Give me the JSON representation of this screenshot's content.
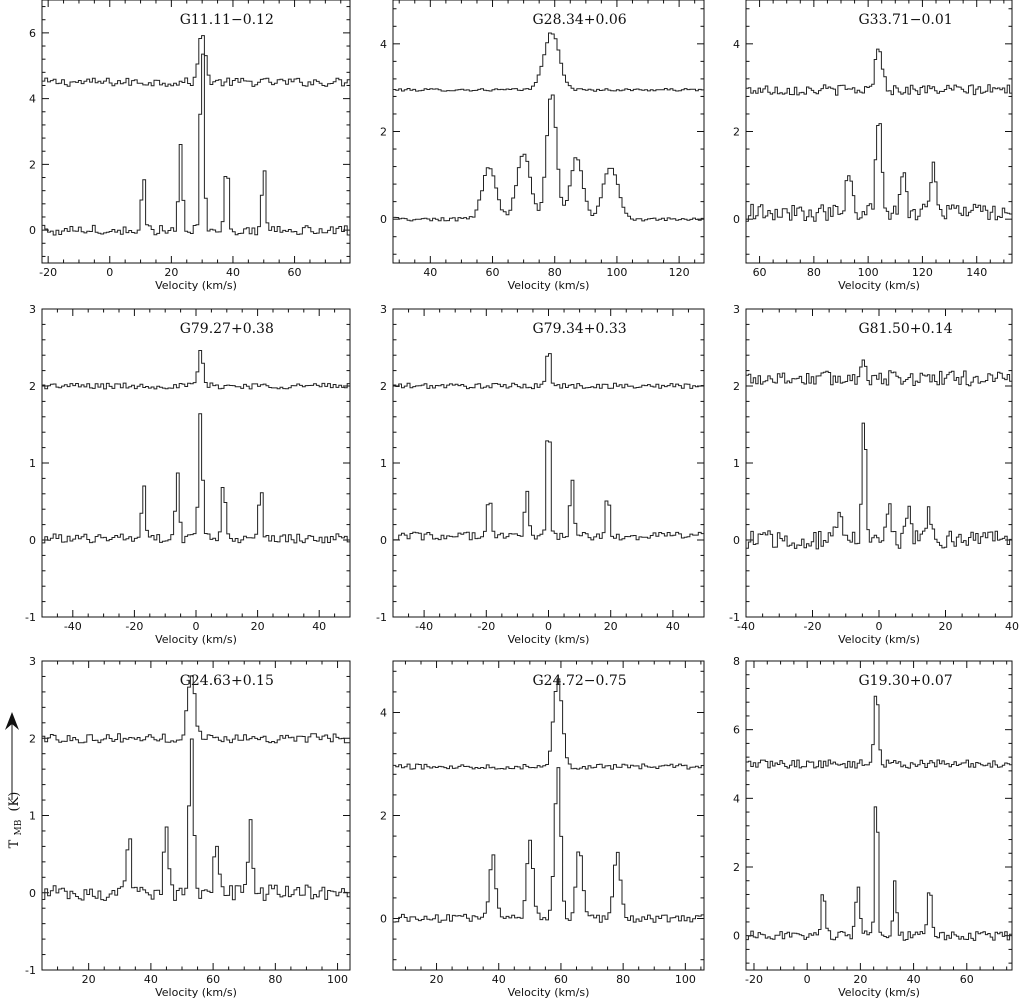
{
  "y_axis_label": "T",
  "y_axis_label_sub": "MB",
  "y_axis_label_unit": "(K)",
  "chart_data": [
    {
      "type": "line",
      "title": "G11.11−0.12",
      "xlabel": "Velocity (km/s)",
      "xlim": [
        -22,
        78
      ],
      "ylim": [
        -1,
        7
      ],
      "xticks": [
        -20,
        0,
        20,
        40,
        60
      ],
      "yticks": [
        0,
        2,
        4,
        6
      ],
      "series": [
        {
          "baseline": 4.5,
          "noise": 0.13,
          "peaks": [
            [
              30,
              1.6,
              1.0
            ]
          ]
        },
        {
          "baseline": 0.0,
          "noise": 0.15,
          "peaks": [
            [
              11,
              1.6,
              0.6
            ],
            [
              23,
              2.7,
              0.6
            ],
            [
              30,
              6.0,
              0.6
            ],
            [
              38,
              2.3,
              0.6
            ],
            [
              50,
              2.1,
              0.6
            ]
          ]
        }
      ]
    },
    {
      "type": "line",
      "title": "G28.34+0.06",
      "xlabel": "Velocity (km/s)",
      "xlim": [
        28,
        128
      ],
      "ylim": [
        -1,
        5
      ],
      "xticks": [
        40,
        60,
        80,
        100,
        120
      ],
      "yticks": [
        0,
        2,
        4
      ],
      "series": [
        {
          "baseline": 2.95,
          "noise": 0.03,
          "peaks": [
            [
              79,
              1.3,
              2.5
            ]
          ]
        },
        {
          "baseline": 0.0,
          "noise": 0.04,
          "peaks": [
            [
              59,
              1.2,
              2.2
            ],
            [
              70,
              1.5,
              2.2
            ],
            [
              79,
              2.9,
              1.6
            ],
            [
              87,
              1.4,
              2.0
            ],
            [
              98,
              1.2,
              2.4
            ]
          ]
        }
      ]
    },
    {
      "type": "line",
      "title": "G33.71−0.01",
      "xlabel": "Velocity (km/s)",
      "xlim": [
        55,
        153
      ],
      "ylim": [
        -1,
        5
      ],
      "xticks": [
        60,
        80,
        100,
        120,
        140
      ],
      "yticks": [
        0,
        2,
        4
      ],
      "series": [
        {
          "baseline": 2.95,
          "noise": 0.12,
          "peaks": [
            [
              104,
              1.0,
              1.3
            ]
          ]
        },
        {
          "baseline": 0.15,
          "noise": 0.2,
          "peaks": [
            [
              93,
              0.9,
              1.0
            ],
            [
              104,
              2.1,
              1.1
            ],
            [
              113,
              0.8,
              1.0
            ],
            [
              124,
              1.0,
              1.0
            ]
          ]
        }
      ]
    },
    {
      "type": "line",
      "title": "G79.27+0.38",
      "xlabel": "Velocity (km/s)",
      "xlim": [
        -50,
        50
      ],
      "ylim": [
        -1,
        3
      ],
      "xticks": [
        -40,
        -20,
        0,
        20,
        40
      ],
      "yticks": [
        -1,
        0,
        1,
        2,
        3
      ],
      "series": [
        {
          "baseline": 2.0,
          "noise": 0.04,
          "peaks": [
            [
              1.5,
              0.45,
              0.8
            ]
          ]
        },
        {
          "baseline": 0.02,
          "noise": 0.06,
          "peaks": [
            [
              -17,
              0.7,
              0.6
            ],
            [
              -6,
              0.85,
              0.6
            ],
            [
              1.5,
              1.6,
              0.6
            ],
            [
              9,
              0.75,
              0.6
            ],
            [
              21,
              0.65,
              0.6
            ]
          ]
        }
      ]
    },
    {
      "type": "line",
      "title": "G79.34+0.33",
      "xlabel": "Velocity (km/s)",
      "xlim": [
        -50,
        50
      ],
      "ylim": [
        -1,
        3
      ],
      "xticks": [
        -40,
        -20,
        0,
        20,
        40
      ],
      "yticks": [
        -1,
        0,
        1,
        2,
        3
      ],
      "series": [
        {
          "baseline": 2.0,
          "noise": 0.035,
          "peaks": [
            [
              0,
              0.55,
              0.6
            ]
          ]
        },
        {
          "baseline": 0.05,
          "noise": 0.05,
          "peaks": [
            [
              -19,
              0.55,
              0.6
            ],
            [
              -7,
              0.65,
              0.6
            ],
            [
              0,
              1.9,
              0.5
            ],
            [
              7.5,
              0.8,
              0.6
            ],
            [
              19,
              0.55,
              0.6
            ]
          ]
        }
      ]
    },
    {
      "type": "line",
      "title": "G81.50+0.14",
      "xlabel": "Velocity (km/s)",
      "xlim": [
        -40,
        40
      ],
      "ylim": [
        -1,
        3
      ],
      "xticks": [
        -40,
        -20,
        0,
        20,
        40
      ],
      "yticks": [
        -1,
        0,
        1,
        2,
        3
      ],
      "series": [
        {
          "baseline": 2.1,
          "noise": 0.1,
          "peaks": [
            [
              -4.5,
              0.3,
              0.7
            ]
          ]
        },
        {
          "baseline": 0.0,
          "noise": 0.12,
          "peaks": [
            [
              -12,
              0.45,
              0.7
            ],
            [
              -4.5,
              1.6,
              0.6
            ],
            [
              3,
              0.45,
              0.7
            ],
            [
              9,
              0.45,
              0.7
            ],
            [
              15,
              0.45,
              0.7
            ]
          ]
        }
      ]
    },
    {
      "type": "line",
      "title": "G24.63+0.15",
      "xlabel": "Velocity (km/s)",
      "xlim": [
        5,
        104
      ],
      "ylim": [
        -1,
        3
      ],
      "xticks": [
        20,
        40,
        60,
        80,
        100
      ],
      "yticks": [
        -1,
        0,
        1,
        2,
        3
      ],
      "series": [
        {
          "baseline": 2.0,
          "noise": 0.06,
          "peaks": [
            [
              53,
              0.8,
              1.2
            ]
          ]
        },
        {
          "baseline": 0.0,
          "noise": 0.1,
          "peaks": [
            [
              33,
              0.7,
              0.7
            ],
            [
              45,
              0.9,
              0.7
            ],
            [
              53,
              2.0,
              0.7
            ],
            [
              61,
              0.7,
              0.7
            ],
            [
              72,
              0.85,
              0.7
            ]
          ]
        }
      ]
    },
    {
      "type": "line",
      "title": "G24.72−0.75",
      "xlabel": "Velocity (km/s)",
      "xlim": [
        6,
        106
      ],
      "ylim": [
        -1,
        5
      ],
      "xticks": [
        20,
        40,
        60,
        80,
        100
      ],
      "yticks": [
        0,
        2,
        4
      ],
      "series": [
        {
          "baseline": 2.95,
          "noise": 0.05,
          "peaks": [
            [
              59,
              1.7,
              1.4
            ]
          ]
        },
        {
          "baseline": 0.0,
          "noise": 0.08,
          "peaks": [
            [
              38,
              1.2,
              1.0
            ],
            [
              50,
              1.5,
              1.0
            ],
            [
              59,
              2.9,
              1.0
            ],
            [
              66,
              1.4,
              1.0
            ],
            [
              78,
              1.3,
              1.1
            ]
          ]
        }
      ]
    },
    {
      "type": "line",
      "title": "G19.30+0.07",
      "xlabel": "Velocity (km/s)",
      "xlim": [
        -23,
        77
      ],
      "ylim": [
        -1,
        8
      ],
      "xticks": [
        -20,
        0,
        20,
        40,
        60
      ],
      "yticks": [
        0,
        2,
        4,
        6,
        8
      ],
      "series": [
        {
          "baseline": 5.0,
          "noise": 0.12,
          "peaks": [
            [
              26,
              2.2,
              0.8
            ]
          ]
        },
        {
          "baseline": 0.0,
          "noise": 0.14,
          "peaks": [
            [
              6,
              1.4,
              0.7
            ],
            [
              19,
              1.6,
              0.7
            ],
            [
              26,
              4.5,
              0.6
            ],
            [
              33,
              1.5,
              0.7
            ],
            [
              46,
              1.5,
              0.7
            ]
          ]
        }
      ]
    }
  ]
}
